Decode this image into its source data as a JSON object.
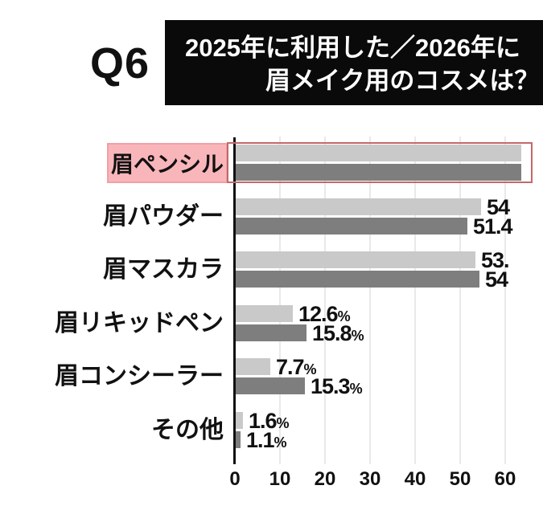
{
  "header": {
    "question_number": "Q6",
    "title_line1": "2025年に利用した／2026年に",
    "title_line2": "眉メイク用のコスメは？",
    "title_bg": "#0a0a0a",
    "title_text_color": "#ffffff"
  },
  "colors": {
    "series_2025_bar": "#c9c9c9",
    "series_2026_bar": "#7e7e7e",
    "highlight_label_bg": "#f9b6ba",
    "highlight_label_border": "#f19fa6",
    "highlight_outline": "#c4686a",
    "gridline": "#e9e9e9",
    "axis": "#111111",
    "background": "#ffffff"
  },
  "chart_data": {
    "type": "bar",
    "orientation": "horizontal",
    "grid": true,
    "legend": "not visible (cropped)",
    "x_axis": {
      "ticks": [
        0,
        10,
        20,
        30,
        40,
        50,
        60
      ],
      "unit": "%",
      "range_visible": [
        0,
        62
      ]
    },
    "series_names": [
      "2025",
      "2026"
    ],
    "categories": [
      "眉ペンシル",
      "眉パウダー",
      "眉マスカラ",
      "眉リキッドペン",
      "眉コンシーラー",
      "その他"
    ],
    "rows": [
      {
        "label": "眉ペンシル",
        "highlight": true,
        "bars": [
          {
            "value": null,
            "display": "",
            "cut_off": true
          },
          {
            "value": null,
            "display": "",
            "cut_off": true
          }
        ]
      },
      {
        "label": "眉パウダー",
        "highlight": false,
        "bars": [
          {
            "value": 54.5,
            "display": "54",
            "cut_off": false
          },
          {
            "value": 51.4,
            "display": "51.4",
            "cut_off": false
          }
        ]
      },
      {
        "label": "眉マスカラ",
        "highlight": false,
        "bars": [
          {
            "value": 53.2,
            "display": "53.",
            "cut_off": false
          },
          {
            "value": 54.1,
            "display": "54",
            "cut_off": false
          }
        ]
      },
      {
        "label": "眉リキッドペン",
        "highlight": false,
        "bars": [
          {
            "value": 12.6,
            "display": "12.6%",
            "cut_off": false
          },
          {
            "value": 15.8,
            "display": "15.8%",
            "cut_off": false
          }
        ]
      },
      {
        "label": "眉コンシーラー",
        "highlight": false,
        "bars": [
          {
            "value": 7.7,
            "display": "7.7%",
            "cut_off": false
          },
          {
            "value": 15.3,
            "display": "15.3%",
            "cut_off": false
          }
        ]
      },
      {
        "label": "その他",
        "highlight": false,
        "bars": [
          {
            "value": 1.6,
            "display": "1.6%",
            "cut_off": false
          },
          {
            "value": 1.1,
            "display": "1.1%",
            "cut_off": false
          }
        ]
      }
    ]
  }
}
